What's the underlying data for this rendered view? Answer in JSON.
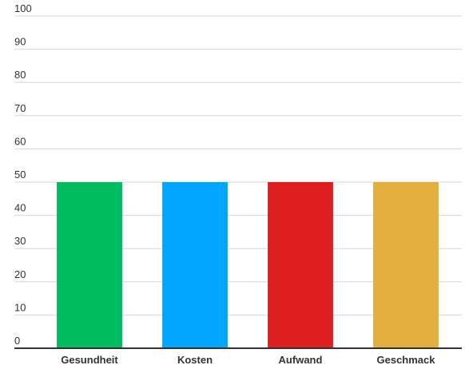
{
  "chart_data": {
    "type": "bar",
    "categories": [
      "Gesundheit",
      "Kosten",
      "Aufwand",
      "Geschmack"
    ],
    "values": [
      50,
      50,
      50,
      50
    ],
    "colors": [
      "#00bb5f",
      "#00a6fb",
      "#df1f1f",
      "#e3b03f"
    ],
    "ylim": [
      0,
      100
    ],
    "yticks": [
      0,
      10,
      20,
      30,
      40,
      50,
      60,
      70,
      80,
      90,
      100
    ],
    "grid": true
  }
}
